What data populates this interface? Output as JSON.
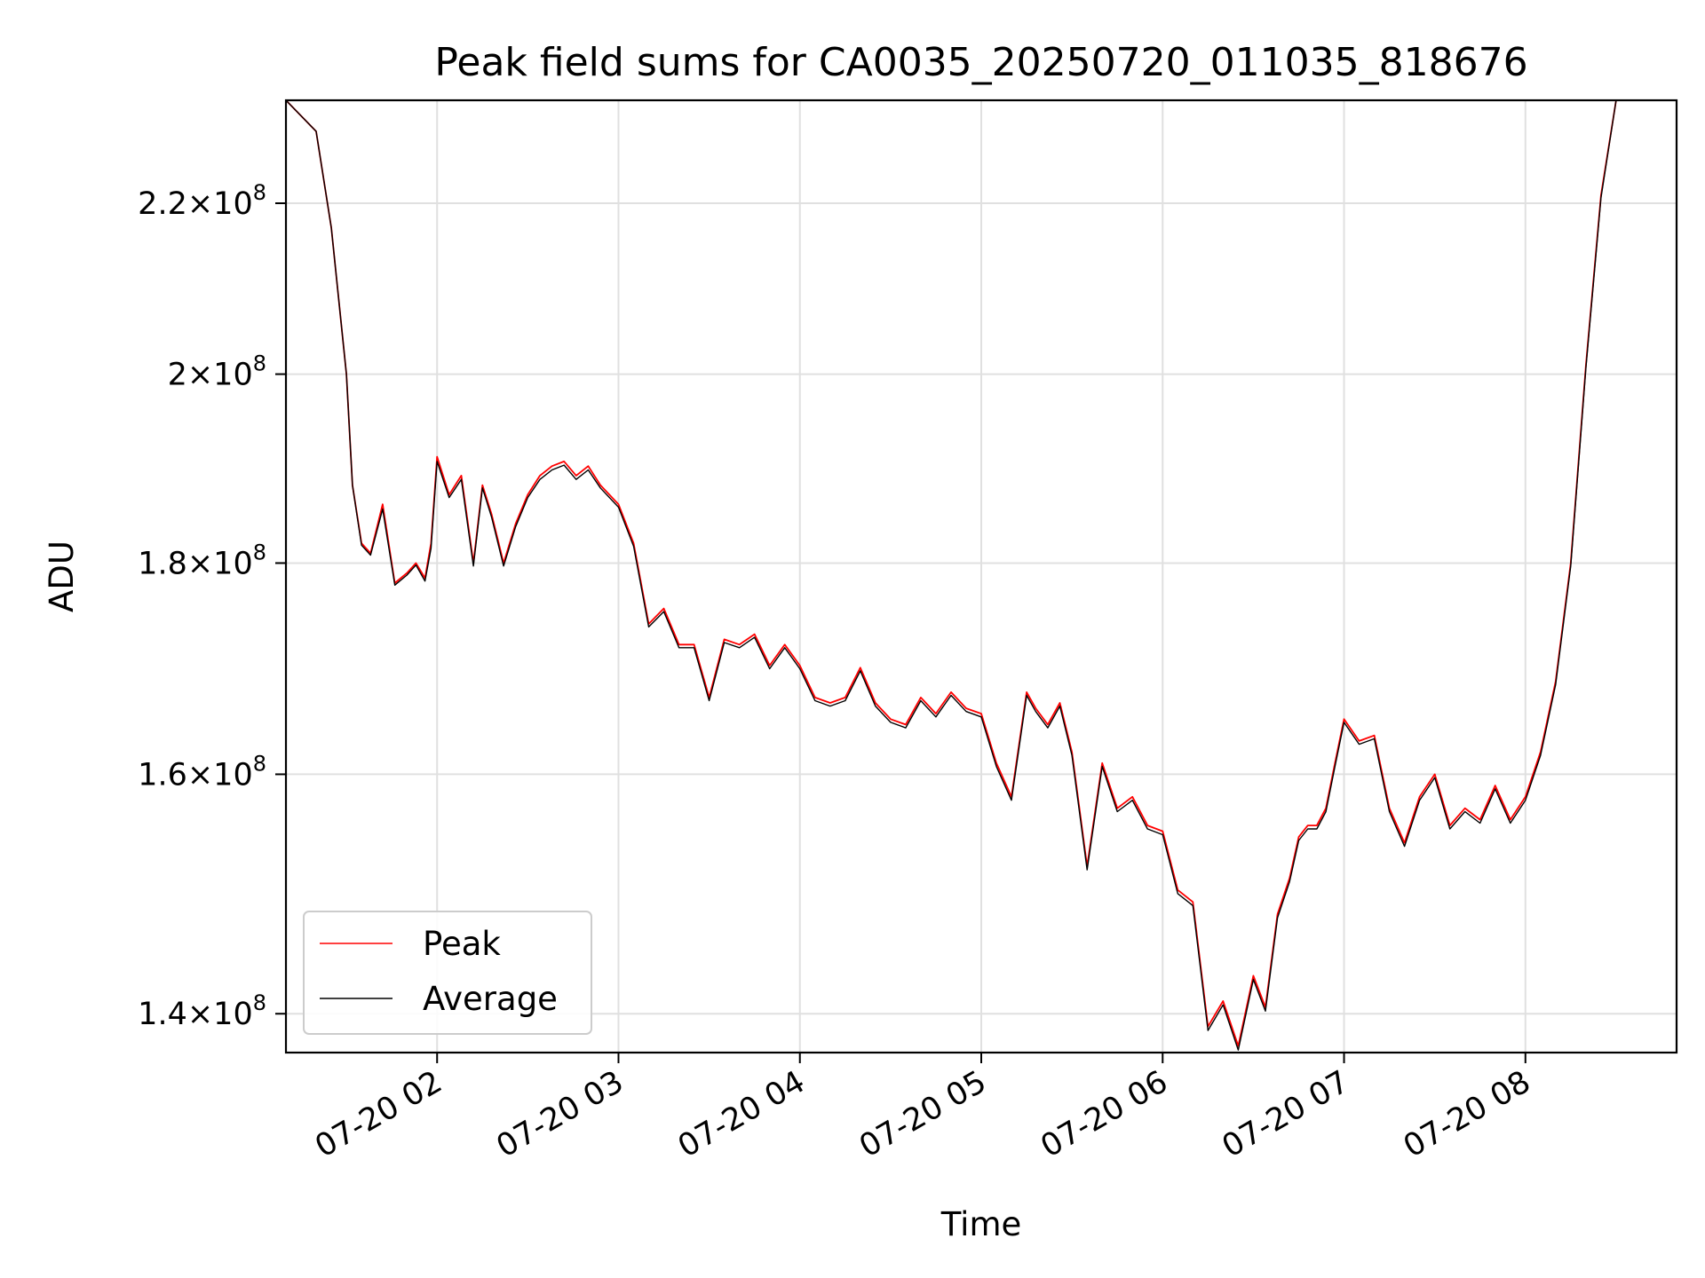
{
  "chart_data": {
    "type": "line",
    "title": "Peak field sums for CA0035_20250720_011035_818676",
    "xlabel": "Time",
    "ylabel": "ADU",
    "xlim": [
      "2025-07-20 01:10",
      "2025-07-20 08:50"
    ],
    "ylim": [
      137000000,
      233000000
    ],
    "y_scale": "log",
    "grid": true,
    "legend_position": "lower-left",
    "x_ticks": [
      {
        "value": "2025-07-20 02:00",
        "label": "07-20 02"
      },
      {
        "value": "2025-07-20 03:00",
        "label": "07-20 03"
      },
      {
        "value": "2025-07-20 04:00",
        "label": "07-20 04"
      },
      {
        "value": "2025-07-20 05:00",
        "label": "07-20 05"
      },
      {
        "value": "2025-07-20 06:00",
        "label": "07-20 06"
      },
      {
        "value": "2025-07-20 07:00",
        "label": "07-20 07"
      },
      {
        "value": "2025-07-20 08:00",
        "label": "07-20 08"
      }
    ],
    "y_ticks": [
      {
        "value": 140000000,
        "mantissa": "1.4",
        "exponent": "8"
      },
      {
        "value": 160000000,
        "mantissa": "1.6",
        "exponent": "8"
      },
      {
        "value": 180000000,
        "mantissa": "1.8",
        "exponent": "8"
      },
      {
        "value": 200000000,
        "mantissa": "2",
        "exponent": "8"
      },
      {
        "value": 220000000,
        "mantissa": "2.2",
        "exponent": "8"
      }
    ],
    "x": [
      "2025-07-20 01:10",
      "2025-07-20 01:20",
      "2025-07-20 01:25",
      "2025-07-20 01:30",
      "2025-07-20 01:32",
      "2025-07-20 01:35",
      "2025-07-20 01:38",
      "2025-07-20 01:42",
      "2025-07-20 01:46",
      "2025-07-20 01:50",
      "2025-07-20 01:53",
      "2025-07-20 01:56",
      "2025-07-20 01:58",
      "2025-07-20 02:00",
      "2025-07-20 02:04",
      "2025-07-20 02:08",
      "2025-07-20 02:12",
      "2025-07-20 02:15",
      "2025-07-20 02:18",
      "2025-07-20 02:22",
      "2025-07-20 02:26",
      "2025-07-20 02:30",
      "2025-07-20 02:34",
      "2025-07-20 02:38",
      "2025-07-20 02:42",
      "2025-07-20 02:46",
      "2025-07-20 02:50",
      "2025-07-20 02:54",
      "2025-07-20 03:00",
      "2025-07-20 03:05",
      "2025-07-20 03:10",
      "2025-07-20 03:15",
      "2025-07-20 03:20",
      "2025-07-20 03:25",
      "2025-07-20 03:30",
      "2025-07-20 03:35",
      "2025-07-20 03:40",
      "2025-07-20 03:45",
      "2025-07-20 03:50",
      "2025-07-20 03:55",
      "2025-07-20 04:00",
      "2025-07-20 04:05",
      "2025-07-20 04:10",
      "2025-07-20 04:15",
      "2025-07-20 04:20",
      "2025-07-20 04:25",
      "2025-07-20 04:30",
      "2025-07-20 04:35",
      "2025-07-20 04:40",
      "2025-07-20 04:45",
      "2025-07-20 04:50",
      "2025-07-20 04:55",
      "2025-07-20 05:00",
      "2025-07-20 05:05",
      "2025-07-20 05:10",
      "2025-07-20 05:15",
      "2025-07-20 05:18",
      "2025-07-20 05:22",
      "2025-07-20 05:26",
      "2025-07-20 05:30",
      "2025-07-20 05:35",
      "2025-07-20 05:40",
      "2025-07-20 05:45",
      "2025-07-20 05:50",
      "2025-07-20 05:55",
      "2025-07-20 06:00",
      "2025-07-20 06:05",
      "2025-07-20 06:10",
      "2025-07-20 06:15",
      "2025-07-20 06:20",
      "2025-07-20 06:25",
      "2025-07-20 06:30",
      "2025-07-20 06:34",
      "2025-07-20 06:38",
      "2025-07-20 06:42",
      "2025-07-20 06:45",
      "2025-07-20 06:48",
      "2025-07-20 06:51",
      "2025-07-20 06:54",
      "2025-07-20 06:57",
      "2025-07-20 07:00",
      "2025-07-20 07:05",
      "2025-07-20 07:10",
      "2025-07-20 07:15",
      "2025-07-20 07:20",
      "2025-07-20 07:25",
      "2025-07-20 07:30",
      "2025-07-20 07:35",
      "2025-07-20 07:40",
      "2025-07-20 07:45",
      "2025-07-20 07:50",
      "2025-07-20 07:55",
      "2025-07-20 08:00",
      "2025-07-20 08:05",
      "2025-07-20 08:10",
      "2025-07-20 08:15",
      "2025-07-20 08:20",
      "2025-07-20 08:25",
      "2025-07-20 08:30",
      "2025-07-20 08:35",
      "2025-07-20 08:40",
      "2025-07-20 08:45",
      "2025-07-20 08:50"
    ],
    "series": [
      {
        "name": "Peak",
        "color": "#ff0000",
        "values": [
          233000000,
          229000000,
          217000000,
          200000000,
          188000000,
          182000000,
          181000000,
          186000000,
          178000000,
          179000000,
          180000000,
          178500000,
          182000000,
          191000000,
          187000000,
          189000000,
          180000000,
          188000000,
          185000000,
          180000000,
          184000000,
          187000000,
          189000000,
          190000000,
          190500000,
          189000000,
          190000000,
          188000000,
          186000000,
          182000000,
          174000000,
          175500000,
          172000000,
          172000000,
          167000000,
          172500000,
          172000000,
          173000000,
          170000000,
          172000000,
          170000000,
          167000000,
          166500000,
          167000000,
          169800000,
          166500000,
          165000000,
          164500000,
          167000000,
          165500000,
          167500000,
          166000000,
          165500000,
          161000000,
          158000000,
          167500000,
          166000000,
          164500000,
          166500000,
          162000000,
          152000000,
          161000000,
          157000000,
          158000000,
          155500000,
          155000000,
          150000000,
          149000000,
          139000000,
          141000000,
          137500000,
          143000000,
          140500000,
          148000000,
          151000000,
          154500000,
          155500000,
          155500000,
          157000000,
          161000000,
          165000000,
          163000000,
          163500000,
          157000000,
          154000000,
          158000000,
          160000000,
          155500000,
          157000000,
          156000000,
          159000000,
          156000000,
          158000000,
          162000000,
          168500000,
          180000000,
          201000000,
          221000000,
          233000000,
          233000000,
          233000000,
          233000000,
          233000000
        ]
      },
      {
        "name": "Average",
        "color": "#000000",
        "values": [
          233000000,
          229000000,
          217000000,
          200000000,
          188000000,
          181800000,
          180800000,
          185500000,
          177800000,
          178800000,
          179800000,
          178200000,
          181500000,
          190500000,
          186700000,
          188600000,
          179700000,
          187700000,
          184700000,
          179700000,
          183700000,
          186700000,
          188600000,
          189600000,
          190100000,
          188600000,
          189600000,
          187700000,
          185700000,
          181700000,
          173700000,
          175200000,
          171700000,
          171700000,
          166700000,
          172200000,
          171700000,
          172700000,
          169700000,
          171700000,
          169700000,
          166700000,
          166200000,
          166700000,
          169500000,
          166200000,
          164700000,
          164200000,
          166700000,
          165200000,
          167200000,
          165700000,
          165200000,
          160700000,
          157700000,
          167200000,
          165700000,
          164200000,
          166200000,
          161700000,
          151700000,
          160700000,
          156700000,
          157700000,
          155200000,
          154700000,
          149700000,
          148700000,
          138700000,
          140700000,
          137200000,
          142700000,
          140200000,
          147700000,
          150700000,
          154200000,
          155200000,
          155200000,
          156700000,
          160700000,
          164700000,
          162700000,
          163200000,
          156700000,
          153700000,
          157700000,
          159700000,
          155200000,
          156700000,
          155700000,
          158700000,
          155700000,
          157700000,
          161700000,
          168200000,
          179700000,
          200700000,
          220700000,
          233000000,
          233000000,
          233000000,
          233000000,
          233000000
        ]
      }
    ]
  }
}
